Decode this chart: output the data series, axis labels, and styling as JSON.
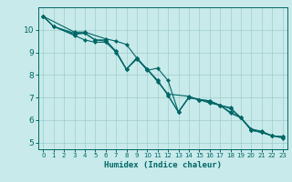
{
  "xlabel": "Humidex (Indice chaleur)",
  "bg_color": "#c8eaea",
  "grid_color": "#a0cccc",
  "line_color": "#006666",
  "marker_color": "#006666",
  "xlim": [
    -0.5,
    23.5
  ],
  "ylim": [
    4.7,
    11.0
  ],
  "yticks": [
    5,
    6,
    7,
    8,
    9,
    10
  ],
  "xticks": [
    0,
    1,
    2,
    3,
    4,
    5,
    6,
    7,
    8,
    9,
    10,
    11,
    12,
    13,
    14,
    15,
    16,
    17,
    18,
    19,
    20,
    21,
    22,
    23
  ],
  "series": [
    {
      "x": [
        0,
        1,
        3,
        4,
        5,
        6,
        7,
        8,
        9,
        10,
        11,
        12,
        13,
        14,
        15,
        16,
        17,
        18,
        19,
        20,
        21,
        22,
        23
      ],
      "y": [
        10.6,
        10.15,
        9.85,
        9.85,
        9.55,
        9.55,
        9.05,
        8.25,
        8.75,
        8.25,
        7.75,
        7.1,
        6.35,
        7.0,
        6.9,
        6.8,
        6.65,
        6.3,
        6.1,
        5.55,
        5.45,
        5.3,
        5.25
      ]
    },
    {
      "x": [
        0,
        3,
        4,
        6,
        7,
        8,
        9,
        10,
        11,
        12,
        13,
        14,
        15,
        16,
        17,
        18,
        19,
        20,
        21,
        22,
        23
      ],
      "y": [
        10.6,
        9.9,
        9.9,
        9.6,
        9.5,
        9.35,
        8.75,
        8.2,
        8.3,
        7.75,
        6.35,
        7.0,
        6.9,
        6.85,
        6.65,
        6.5,
        6.1,
        5.6,
        5.5,
        5.3,
        5.2
      ]
    },
    {
      "x": [
        0,
        1,
        3,
        4,
        5,
        6,
        7,
        8,
        9,
        10,
        11,
        12,
        14,
        15,
        16,
        17,
        18,
        19,
        20,
        21,
        22,
        23
      ],
      "y": [
        10.6,
        10.15,
        9.75,
        9.55,
        9.45,
        9.45,
        9.05,
        8.25,
        8.75,
        8.25,
        7.7,
        7.15,
        7.05,
        6.9,
        6.75,
        6.65,
        6.55,
        6.1,
        5.55,
        5.45,
        5.3,
        5.25
      ]
    },
    {
      "x": [
        0,
        1,
        3,
        4,
        5,
        6,
        7,
        8,
        9,
        10,
        11,
        12,
        13,
        14,
        15,
        16,
        17,
        18,
        19,
        20,
        21,
        22,
        23
      ],
      "y": [
        10.6,
        10.15,
        9.8,
        9.85,
        9.55,
        9.5,
        9.0,
        8.25,
        8.7,
        8.25,
        7.75,
        7.1,
        6.35,
        7.0,
        6.9,
        6.85,
        6.65,
        6.35,
        6.1,
        5.55,
        5.45,
        5.3,
        5.25
      ]
    }
  ]
}
